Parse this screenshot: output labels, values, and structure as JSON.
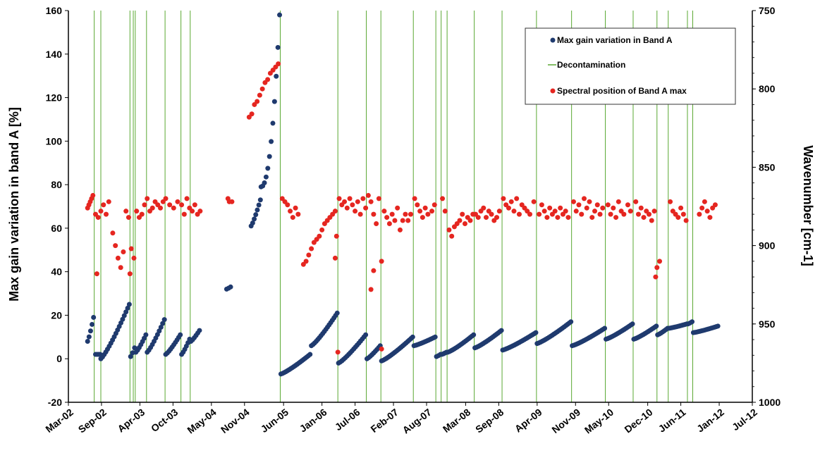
{
  "chart_data": {
    "type": "scatter",
    "title": "",
    "xlabel": "",
    "ylabel": "Max gain variation in band A   [%]",
    "y2label": "Wavenumber   [cm-1]",
    "ylim": [
      -20,
      160
    ],
    "y2lim": [
      750,
      1000
    ],
    "y2_inverted": true,
    "yticks": [
      -20,
      0,
      20,
      40,
      60,
      80,
      100,
      120,
      140,
      160
    ],
    "y2ticks": [
      750,
      800,
      850,
      900,
      950,
      1000
    ],
    "xtick_labels": [
      "Mar-02",
      "Sep-02",
      "Apr-03",
      "Oct-03",
      "May-04",
      "Nov-04",
      "Jun-05",
      "Jan-06",
      "Jul-06",
      "Feb-07",
      "Aug-07",
      "Mar-08",
      "Sep-08",
      "Apr-09",
      "Nov-09",
      "May-10",
      "Dec-10",
      "Jun-11",
      "Jan-12",
      "Jul-12"
    ],
    "xtick_values": [
      2002.17,
      2002.67,
      2003.25,
      2003.75,
      2004.33,
      2004.83,
      2005.42,
      2006.0,
      2006.5,
      2007.08,
      2007.58,
      2008.17,
      2008.67,
      2009.25,
      2009.83,
      2010.33,
      2010.92,
      2011.42,
      2012.0,
      2012.5
    ],
    "xlim": [
      2002.17,
      2012.5
    ],
    "grid": false,
    "legend_position": "top-right",
    "legend": [
      {
        "label": "Max gain variation  in Band A",
        "marker": "dot",
        "color": "#1f3a6e"
      },
      {
        "label": "Decontamination",
        "marker": "line",
        "color": "#5aa832"
      },
      {
        "label": "Spectral position of Band A max",
        "marker": "dot",
        "color": "#e52620"
      }
    ],
    "colors": {
      "gain": "#1f3a6e",
      "decon": "#5aa832",
      "spectral": "#e52620"
    },
    "decontamination_dates": [
      2002.56,
      2002.66,
      2003.1,
      2003.15,
      2003.18,
      2003.35,
      2003.63,
      2003.87,
      2004.01,
      2005.37,
      2006.24,
      2006.67,
      2006.89,
      2007.38,
      2007.72,
      2007.8,
      2007.89,
      2008.3,
      2008.72,
      2009.24,
      2009.77,
      2010.28,
      2010.7,
      2011.06,
      2011.23,
      2011.52,
      2011.6
    ],
    "gain_segments": [
      {
        "x0": 2002.46,
        "x1": 2002.55,
        "y0": 8,
        "y1": 19
      },
      {
        "x0": 2002.58,
        "x1": 2002.65,
        "y0": 2,
        "y1": 2
      },
      {
        "x0": 2002.66,
        "x1": 2003.09,
        "y0": 0,
        "y1": 25
      },
      {
        "x0": 2003.11,
        "x1": 2003.17,
        "y0": 1,
        "y1": 5
      },
      {
        "x0": 2003.19,
        "x1": 2003.34,
        "y0": 3,
        "y1": 11
      },
      {
        "x0": 2003.36,
        "x1": 2003.62,
        "y0": 3,
        "y1": 18
      },
      {
        "x0": 2003.64,
        "x1": 2003.86,
        "y0": 2,
        "y1": 11
      },
      {
        "x0": 2003.88,
        "x1": 2004.0,
        "y0": 2,
        "y1": 9
      },
      {
        "x0": 2004.02,
        "x1": 2004.15,
        "y0": 8,
        "y1": 13
      },
      {
        "x0": 2004.56,
        "x1": 2004.62,
        "y0": 32,
        "y1": 33
      },
      {
        "x0": 2004.93,
        "x1": 2005.07,
        "y0": 61,
        "y1": 73
      },
      {
        "x0": 2005.08,
        "x1": 2005.36,
        "y0": 79,
        "y1": 158
      },
      {
        "x0": 2005.38,
        "x1": 2005.82,
        "y0": -7,
        "y1": 2
      },
      {
        "x0": 2005.84,
        "x1": 2006.23,
        "y0": 6,
        "y1": 21
      },
      {
        "x0": 2006.25,
        "x1": 2006.66,
        "y0": -2,
        "y1": 11
      },
      {
        "x0": 2006.68,
        "x1": 2006.88,
        "y0": 0,
        "y1": 6
      },
      {
        "x0": 2006.9,
        "x1": 2007.37,
        "y0": -1,
        "y1": 10
      },
      {
        "x0": 2007.39,
        "x1": 2007.71,
        "y0": 6,
        "y1": 10
      },
      {
        "x0": 2007.73,
        "x1": 2007.79,
        "y0": 1,
        "y1": 2
      },
      {
        "x0": 2007.81,
        "x1": 2007.88,
        "y0": 2,
        "y1": 3
      },
      {
        "x0": 2007.9,
        "x1": 2008.29,
        "y0": 3,
        "y1": 11
      },
      {
        "x0": 2008.31,
        "x1": 2008.71,
        "y0": 5,
        "y1": 13
      },
      {
        "x0": 2008.73,
        "x1": 2009.23,
        "y0": 4,
        "y1": 12
      },
      {
        "x0": 2009.25,
        "x1": 2009.76,
        "y0": 7,
        "y1": 17
      },
      {
        "x0": 2009.78,
        "x1": 2010.27,
        "y0": 6,
        "y1": 14
      },
      {
        "x0": 2010.29,
        "x1": 2010.69,
        "y0": 9,
        "y1": 16
      },
      {
        "x0": 2010.71,
        "x1": 2011.05,
        "y0": 9,
        "y1": 15
      },
      {
        "x0": 2011.07,
        "x1": 2011.22,
        "y0": 11,
        "y1": 14
      },
      {
        "x0": 2011.24,
        "x1": 2011.51,
        "y0": 14,
        "y1": 16
      },
      {
        "x0": 2011.53,
        "x1": 2011.59,
        "y0": 16,
        "y1": 17
      },
      {
        "x0": 2011.61,
        "x1": 2011.98,
        "y0": 12,
        "y1": 15
      }
    ],
    "spectral_points": [
      [
        2002.46,
        876
      ],
      [
        2002.48,
        874
      ],
      [
        2002.5,
        872
      ],
      [
        2002.52,
        870
      ],
      [
        2002.54,
        868
      ],
      [
        2002.58,
        880
      ],
      [
        2002.62,
        882
      ],
      [
        2002.66,
        878
      ],
      [
        2002.7,
        874
      ],
      [
        2002.74,
        880
      ],
      [
        2002.78,
        872
      ],
      [
        2002.84,
        892
      ],
      [
        2002.88,
        900
      ],
      [
        2002.92,
        908
      ],
      [
        2002.96,
        914
      ],
      [
        2003.0,
        904
      ],
      [
        2003.04,
        878
      ],
      [
        2003.08,
        882
      ],
      [
        2003.12,
        902
      ],
      [
        2003.16,
        908
      ],
      [
        2003.2,
        878
      ],
      [
        2003.24,
        882
      ],
      [
        2003.28,
        880
      ],
      [
        2003.32,
        874
      ],
      [
        2003.36,
        870
      ],
      [
        2003.4,
        878
      ],
      [
        2003.44,
        876
      ],
      [
        2003.48,
        872
      ],
      [
        2003.52,
        874
      ],
      [
        2003.56,
        876
      ],
      [
        2003.6,
        872
      ],
      [
        2003.64,
        870
      ],
      [
        2003.7,
        874
      ],
      [
        2003.76,
        876
      ],
      [
        2003.82,
        872
      ],
      [
        2003.88,
        874
      ],
      [
        2003.92,
        880
      ],
      [
        2003.96,
        870
      ],
      [
        2004.0,
        876
      ],
      [
        2004.04,
        878
      ],
      [
        2004.08,
        874
      ],
      [
        2004.12,
        880
      ],
      [
        2004.16,
        878
      ],
      [
        2004.58,
        870
      ],
      [
        2004.6,
        872
      ],
      [
        2004.64,
        872
      ],
      [
        2004.9,
        818
      ],
      [
        2004.94,
        816
      ],
      [
        2004.98,
        810
      ],
      [
        2005.02,
        808
      ],
      [
        2005.06,
        804
      ],
      [
        2005.1,
        800
      ],
      [
        2005.14,
        796
      ],
      [
        2005.18,
        794
      ],
      [
        2005.22,
        790
      ],
      [
        2005.26,
        788
      ],
      [
        2005.3,
        786
      ],
      [
        2005.34,
        784
      ],
      [
        2005.4,
        870
      ],
      [
        2005.44,
        872
      ],
      [
        2005.48,
        874
      ],
      [
        2005.52,
        878
      ],
      [
        2005.56,
        882
      ],
      [
        2005.6,
        876
      ],
      [
        2005.64,
        880
      ],
      [
        2005.72,
        912
      ],
      [
        2005.76,
        910
      ],
      [
        2005.8,
        906
      ],
      [
        2005.84,
        902
      ],
      [
        2005.88,
        898
      ],
      [
        2005.92,
        896
      ],
      [
        2005.96,
        894
      ],
      [
        2006.0,
        890
      ],
      [
        2006.04,
        886
      ],
      [
        2006.08,
        884
      ],
      [
        2006.12,
        882
      ],
      [
        2006.16,
        880
      ],
      [
        2006.2,
        878
      ],
      [
        2006.22,
        894
      ],
      [
        2006.26,
        870
      ],
      [
        2006.3,
        874
      ],
      [
        2006.34,
        872
      ],
      [
        2006.38,
        876
      ],
      [
        2006.42,
        870
      ],
      [
        2006.46,
        874
      ],
      [
        2006.5,
        878
      ],
      [
        2006.54,
        872
      ],
      [
        2006.58,
        880
      ],
      [
        2006.62,
        870
      ],
      [
        2006.66,
        876
      ],
      [
        2006.7,
        868
      ],
      [
        2006.74,
        872
      ],
      [
        2006.78,
        880
      ],
      [
        2006.82,
        886
      ],
      [
        2006.86,
        870
      ],
      [
        2006.9,
        910
      ],
      [
        2006.94,
        878
      ],
      [
        2006.98,
        882
      ],
      [
        2007.02,
        886
      ],
      [
        2007.06,
        880
      ],
      [
        2007.1,
        884
      ],
      [
        2007.14,
        876
      ],
      [
        2007.18,
        890
      ],
      [
        2007.22,
        884
      ],
      [
        2007.26,
        880
      ],
      [
        2007.3,
        884
      ],
      [
        2007.34,
        880
      ],
      [
        2007.4,
        870
      ],
      [
        2007.44,
        874
      ],
      [
        2007.48,
        878
      ],
      [
        2007.52,
        882
      ],
      [
        2007.56,
        876
      ],
      [
        2007.6,
        880
      ],
      [
        2007.66,
        878
      ],
      [
        2007.7,
        874
      ],
      [
        2007.82,
        870
      ],
      [
        2007.86,
        878
      ],
      [
        2007.92,
        890
      ],
      [
        2007.96,
        894
      ],
      [
        2008.0,
        888
      ],
      [
        2008.04,
        886
      ],
      [
        2008.08,
        884
      ],
      [
        2008.12,
        880
      ],
      [
        2008.16,
        886
      ],
      [
        2008.2,
        882
      ],
      [
        2008.24,
        884
      ],
      [
        2008.28,
        880
      ],
      [
        2008.32,
        880
      ],
      [
        2008.36,
        882
      ],
      [
        2008.4,
        878
      ],
      [
        2008.44,
        876
      ],
      [
        2008.48,
        882
      ],
      [
        2008.52,
        878
      ],
      [
        2008.56,
        880
      ],
      [
        2008.6,
        884
      ],
      [
        2008.64,
        882
      ],
      [
        2008.68,
        878
      ],
      [
        2008.74,
        870
      ],
      [
        2008.78,
        874
      ],
      [
        2008.82,
        876
      ],
      [
        2008.86,
        872
      ],
      [
        2008.9,
        878
      ],
      [
        2008.94,
        870
      ],
      [
        2008.98,
        880
      ],
      [
        2009.02,
        874
      ],
      [
        2009.06,
        876
      ],
      [
        2009.1,
        878
      ],
      [
        2009.14,
        880
      ],
      [
        2009.2,
        872
      ],
      [
        2009.28,
        880
      ],
      [
        2009.32,
        874
      ],
      [
        2009.36,
        878
      ],
      [
        2009.4,
        882
      ],
      [
        2009.44,
        876
      ],
      [
        2009.48,
        880
      ],
      [
        2009.52,
        878
      ],
      [
        2009.56,
        882
      ],
      [
        2009.6,
        876
      ],
      [
        2009.64,
        880
      ],
      [
        2009.68,
        878
      ],
      [
        2009.72,
        882
      ],
      [
        2009.8,
        872
      ],
      [
        2009.84,
        878
      ],
      [
        2009.88,
        874
      ],
      [
        2009.92,
        880
      ],
      [
        2009.96,
        870
      ],
      [
        2010.0,
        876
      ],
      [
        2010.04,
        872
      ],
      [
        2010.08,
        882
      ],
      [
        2010.12,
        878
      ],
      [
        2010.16,
        874
      ],
      [
        2010.2,
        880
      ],
      [
        2010.24,
        876
      ],
      [
        2010.32,
        874
      ],
      [
        2010.36,
        880
      ],
      [
        2010.4,
        876
      ],
      [
        2010.44,
        882
      ],
      [
        2010.48,
        872
      ],
      [
        2010.52,
        878
      ],
      [
        2010.56,
        880
      ],
      [
        2010.62,
        874
      ],
      [
        2010.66,
        878
      ],
      [
        2010.74,
        872
      ],
      [
        2010.78,
        880
      ],
      [
        2010.82,
        876
      ],
      [
        2010.86,
        882
      ],
      [
        2010.9,
        878
      ],
      [
        2010.94,
        880
      ],
      [
        2010.98,
        884
      ],
      [
        2011.02,
        878
      ],
      [
        2011.04,
        920
      ],
      [
        2011.06,
        914
      ],
      [
        2011.1,
        910
      ],
      [
        2011.26,
        872
      ],
      [
        2011.3,
        878
      ],
      [
        2011.34,
        880
      ],
      [
        2011.38,
        882
      ],
      [
        2011.42,
        876
      ],
      [
        2011.46,
        880
      ],
      [
        2011.5,
        884
      ],
      [
        2011.7,
        880
      ],
      [
        2011.74,
        876
      ],
      [
        2011.78,
        872
      ],
      [
        2011.82,
        878
      ],
      [
        2011.86,
        882
      ],
      [
        2011.9,
        876
      ],
      [
        2011.94,
        874
      ],
      [
        2002.6,
        918
      ],
      [
        2003.1,
        918
      ],
      [
        2006.2,
        908
      ],
      [
        2006.24,
        968
      ],
      [
        2006.74,
        928
      ],
      [
        2006.78,
        916
      ],
      [
        2006.9,
        966
      ]
    ]
  }
}
